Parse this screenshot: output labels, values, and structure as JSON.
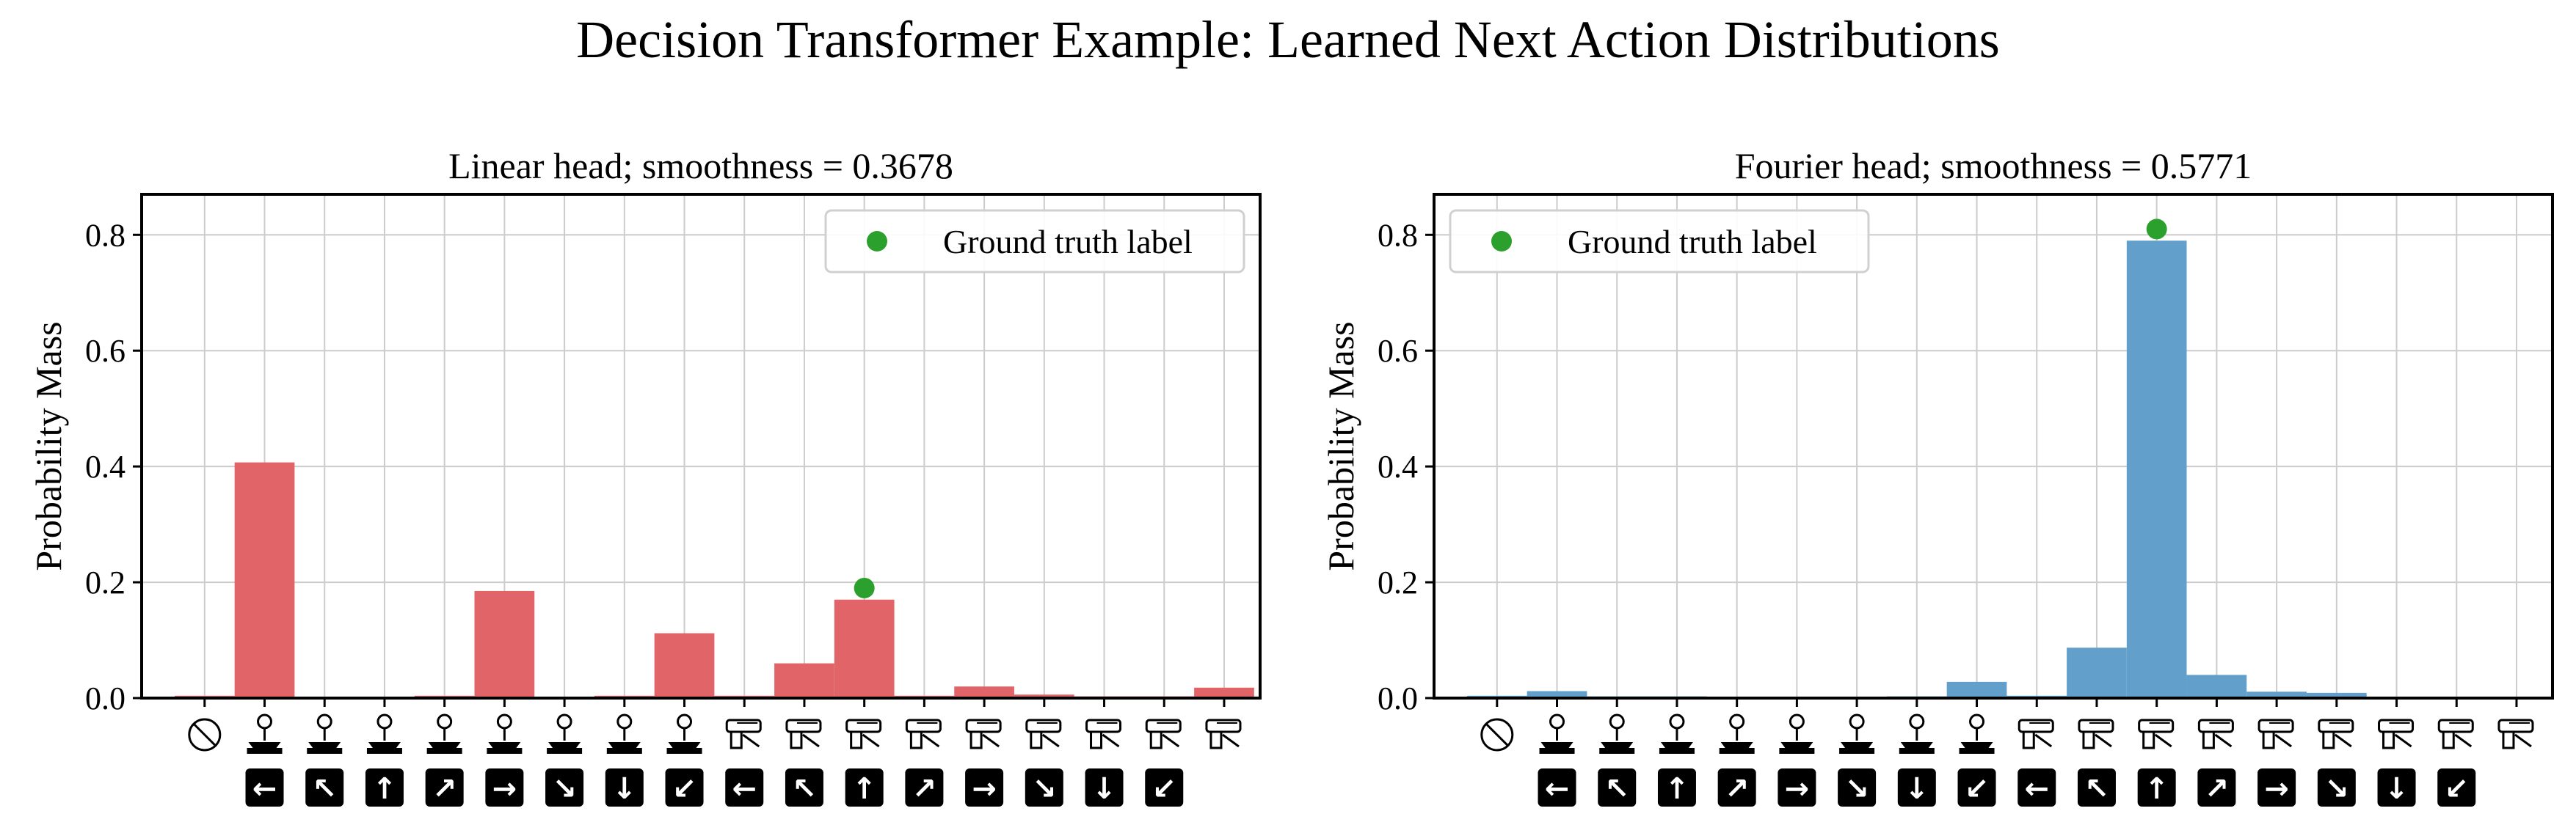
{
  "figure_title": "Decision Transformer Example: Learned Next Action Distributions",
  "action_labels": [
    "no-op",
    "fire-left",
    "fire-up-left",
    "fire-up",
    "fire-up-right",
    "fire-right",
    "fire-down-right",
    "fire-down",
    "fire-down-left",
    "move-left",
    "move-up-left",
    "move-up",
    "move-up-right",
    "move-right",
    "move-down-right",
    "move-down",
    "move-down-left",
    "move-extra"
  ],
  "colors": {
    "linear": "#e06468",
    "fourier": "#629fcb",
    "ground_truth": "#2ca02c",
    "grid": "#cccccc"
  },
  "chart_data": [
    {
      "type": "bar",
      "title": "Linear head; smoothness = 0.3678",
      "ylabel": "Probability Mass",
      "ylim": [
        0,
        0.87
      ],
      "yticks": [
        "0.0",
        "0.2",
        "0.4",
        "0.6",
        "0.8"
      ],
      "legend": {
        "label": "Ground truth label",
        "placement": "top-right"
      },
      "grid": true,
      "categories": [
        0,
        1,
        2,
        3,
        4,
        5,
        6,
        7,
        8,
        9,
        10,
        11,
        12,
        13,
        14,
        15,
        16,
        17
      ],
      "values": [
        0.004,
        0.407,
        0.002,
        0.002,
        0.004,
        0.185,
        0.002,
        0.004,
        0.112,
        0.004,
        0.06,
        0.17,
        0.004,
        0.02,
        0.006,
        0.003,
        0.003,
        0.018
      ],
      "ground_truth": {
        "index": 11,
        "value": 0.19
      }
    },
    {
      "type": "bar",
      "title": "Fourier head; smoothness = 0.5771",
      "ylabel": "Probability Mass",
      "ylim": [
        0,
        0.87
      ],
      "yticks": [
        "0.0",
        "0.2",
        "0.4",
        "0.6",
        "0.8"
      ],
      "legend": {
        "label": "Ground truth label",
        "placement": "top-left"
      },
      "grid": true,
      "categories": [
        0,
        1,
        2,
        3,
        4,
        5,
        6,
        7,
        8,
        9,
        10,
        11,
        12,
        13,
        14,
        15,
        16,
        17
      ],
      "values": [
        0.004,
        0.012,
        0.003,
        0.003,
        0.002,
        0.002,
        0.002,
        0.003,
        0.028,
        0.004,
        0.087,
        0.79,
        0.04,
        0.011,
        0.009,
        0.002,
        0.002,
        0.001
      ],
      "ground_truth": {
        "index": 11,
        "value": 0.81
      }
    }
  ]
}
